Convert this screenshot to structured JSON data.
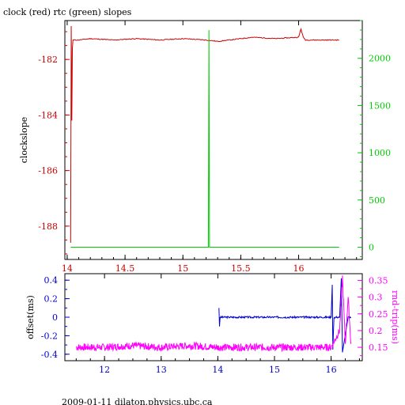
{
  "title": "clock (red) rtc (green) slopes",
  "footer": "2009-01-11  dilaton.physics.ubc.ca",
  "colors": {
    "red": "#cc0000",
    "green": "#00cc00",
    "blue": "#0000cc",
    "magenta": "#ff00ff",
    "frame": "#000000"
  },
  "chart_data": [
    {
      "type": "line",
      "ylabel": "clockslope",
      "y2label": "",
      "xlim": [
        13.98,
        16.55
      ],
      "ylim": [
        -189.2,
        -180.6
      ],
      "y2lim": [
        -130,
        2400
      ],
      "xticks": [
        "14",
        "14.5",
        "15",
        "15.5",
        "16"
      ],
      "yticks": [
        "-182",
        "-184",
        "-186",
        "-188"
      ],
      "y2ticks": [
        "0",
        "500",
        "1000",
        "1500",
        "2000"
      ],
      "series": [
        {
          "color": "red",
          "axis": "left",
          "x": [
            14.03,
            14.035,
            14.04,
            14.045,
            14.05,
            14.06,
            14.1,
            14.2,
            14.4,
            14.6,
            14.8,
            15.0,
            15.2,
            15.3,
            15.4,
            15.6,
            15.8,
            16.0,
            16.02,
            16.04,
            16.06,
            16.2,
            16.35
          ],
          "y": [
            -188.6,
            -180.8,
            -184.2,
            -181.6,
            -181.3,
            -181.3,
            -181.3,
            -181.25,
            -181.3,
            -181.25,
            -181.3,
            -181.25,
            -181.3,
            -181.35,
            -181.3,
            -181.2,
            -181.25,
            -181.2,
            -180.9,
            -181.2,
            -181.3,
            -181.3,
            -181.3
          ]
        },
        {
          "color": "green",
          "axis": "right",
          "x": [
            14.03,
            15.22,
            15.225,
            15.23,
            16.35
          ],
          "y": [
            0,
            0,
            2300,
            0,
            0
          ]
        }
      ]
    },
    {
      "type": "line",
      "ylabel": "offset(ms)",
      "y2label": "rnd-trip(ms)",
      "xlim": [
        11.3,
        16.55
      ],
      "ylim": [
        -0.47,
        0.47
      ],
      "y2lim": [
        0.11,
        0.37
      ],
      "xticks": [
        "12",
        "13",
        "14",
        "15",
        "16"
      ],
      "yticks": [
        "0.4",
        "0.2",
        "0",
        "-0.2",
        "-0.4"
      ],
      "y2ticks": [
        "0.35",
        "0.3",
        "0.25",
        "0.2",
        "0.15"
      ],
      "series": [
        {
          "color": "blue",
          "axis": "left",
          "x": [
            14.02,
            14.03,
            14.04,
            14.08,
            14.5,
            15.0,
            15.5,
            16.0,
            16.02,
            16.03,
            16.05,
            16.1,
            16.15,
            16.18,
            16.2,
            16.3,
            16.35
          ],
          "y": [
            0.1,
            -0.1,
            0.0,
            0.0,
            0.0,
            0.0,
            0.0,
            0.0,
            0.35,
            -0.35,
            0.0,
            0.0,
            0.0,
            0.42,
            -0.38,
            0.0,
            0.0
          ]
        },
        {
          "color": "magenta",
          "axis": "right",
          "x": [
            11.5,
            12.0,
            12.5,
            13.0,
            13.5,
            14.0,
            14.5,
            15.0,
            15.5,
            16.0,
            16.15,
            16.2,
            16.25,
            16.3,
            16.35
          ],
          "y": [
            0.15,
            0.15,
            0.155,
            0.15,
            0.155,
            0.15,
            0.15,
            0.15,
            0.15,
            0.15,
            0.2,
            0.36,
            0.16,
            0.3,
            0.16
          ]
        }
      ]
    }
  ]
}
